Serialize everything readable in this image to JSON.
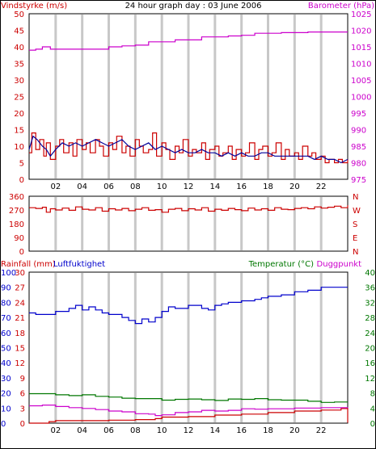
{
  "title": "24 hour graph day : 03 June 2006",
  "colors": {
    "wind": "#cc0000",
    "wind_avg": "#000099",
    "baro": "#cc00cc",
    "dir": "#cc0000",
    "rain": "#cc0000",
    "hum": "#0000cc",
    "temp": "#007700",
    "dew": "#cc00cc",
    "grid": "#c8c8c8",
    "frame": "#000000"
  },
  "x_ticks": [
    "02",
    "04",
    "06",
    "08",
    "10",
    "12",
    "14",
    "16",
    "18",
    "20",
    "22"
  ],
  "chart_data": [
    {
      "type": "line",
      "name": "wind-barometer",
      "left_label": "Vindstyrke (m/s)",
      "right_label": "Barometer (hPa)",
      "left_ticks": [
        0,
        5,
        10,
        15,
        20,
        25,
        30,
        35,
        40,
        45,
        50
      ],
      "left_range": [
        0,
        50
      ],
      "right_ticks": [
        975,
        980,
        985,
        990,
        995,
        1000,
        1005,
        1010,
        1015,
        1020,
        1025
      ],
      "right_range": [
        975,
        1025
      ],
      "x_range": [
        0,
        24
      ],
      "series": [
        {
          "axis": "left",
          "kind": "step",
          "color_key": "wind",
          "x": [
            0,
            0.2,
            0.5,
            0.8,
            1.1,
            1.3,
            1.6,
            2,
            2.3,
            2.6,
            3,
            3.3,
            3.6,
            4,
            4.3,
            4.6,
            5,
            5.3,
            5.6,
            6,
            6.3,
            6.6,
            7,
            7.3,
            7.6,
            8,
            8.3,
            8.6,
            9,
            9.3,
            9.6,
            10,
            10.3,
            10.6,
            11,
            11.3,
            11.6,
            12,
            12.3,
            12.6,
            13,
            13.3,
            13.6,
            14,
            14.3,
            14.6,
            15,
            15.3,
            15.6,
            16,
            16.3,
            16.6,
            17,
            17.3,
            17.6,
            18,
            18.3,
            18.6,
            19,
            19.3,
            19.6,
            20,
            20.3,
            20.6,
            21,
            21.3,
            21.6,
            22,
            22.3,
            22.6,
            23,
            23.3,
            23.6,
            24
          ],
          "values": [
            8,
            14,
            9,
            12,
            7,
            11,
            6,
            10,
            12,
            8,
            11,
            7,
            12,
            9,
            11,
            8,
            12,
            10,
            7,
            11,
            9,
            13,
            8,
            10,
            7,
            12,
            10,
            8,
            9,
            14,
            7,
            11,
            9,
            6,
            10,
            8,
            12,
            7,
            9,
            8,
            11,
            6,
            9,
            10,
            7,
            8,
            10,
            6,
            9,
            7,
            8,
            11,
            6,
            9,
            10,
            7,
            8,
            11,
            6,
            9,
            7,
            8,
            6,
            10,
            7,
            8,
            6,
            7,
            5,
            6,
            5,
            6,
            5,
            6
          ]
        },
        {
          "axis": "left",
          "kind": "line",
          "color_key": "wind_avg",
          "x": [
            0,
            0.3,
            0.6,
            1,
            1.3,
            1.6,
            2,
            2.5,
            3,
            3.5,
            4,
            4.5,
            5,
            5.5,
            6,
            6.5,
            7,
            7.5,
            8,
            8.5,
            9,
            9.5,
            10,
            10.5,
            11,
            11.5,
            12,
            12.5,
            13,
            13.5,
            14,
            14.5,
            15,
            15.5,
            16,
            16.5,
            17,
            17.5,
            18,
            18.5,
            19,
            19.5,
            20,
            20.5,
            21,
            21.5,
            22,
            22.5,
            23,
            23.5,
            24
          ],
          "values": [
            9,
            13,
            12,
            10,
            9,
            7,
            9,
            11,
            10,
            11,
            10,
            11,
            12,
            11,
            10,
            11,
            12,
            10,
            9,
            10,
            11,
            9,
            10,
            9,
            8,
            9,
            8,
            8,
            9,
            8,
            8,
            7,
            8,
            7,
            8,
            7,
            7,
            8,
            8,
            7,
            7,
            7,
            7,
            7,
            7,
            6,
            7,
            6,
            6,
            5,
            6
          ]
        },
        {
          "axis": "right",
          "kind": "step",
          "color_key": "baro",
          "x": [
            0,
            0.5,
            1,
            1.6,
            4,
            6,
            7,
            8,
            9,
            11,
            13,
            15,
            16,
            17,
            19,
            21,
            24
          ],
          "values": [
            1014,
            1014.3,
            1015,
            1014.3,
            1014.3,
            1015,
            1015.3,
            1015.5,
            1016.5,
            1017.1,
            1018,
            1018.3,
            1018.5,
            1019.1,
            1019.3,
            1019.5,
            1019.5
          ]
        }
      ]
    },
    {
      "type": "line",
      "name": "wind-direction",
      "left_ticks": [
        0,
        90,
        180,
        270,
        360
      ],
      "left_range": [
        0,
        360
      ],
      "right_labels": [
        "N",
        "W",
        "S",
        "E",
        "N"
      ],
      "x_range": [
        0,
        24
      ],
      "series": [
        {
          "axis": "left",
          "kind": "step",
          "color_key": "dir",
          "x": [
            0,
            0.5,
            1,
            1.3,
            1.6,
            2,
            2.5,
            3,
            3.5,
            4,
            4.5,
            5,
            5.5,
            6,
            6.5,
            7,
            7.5,
            8,
            8.5,
            9,
            9.5,
            10,
            10.5,
            11,
            11.5,
            12,
            12.5,
            13,
            13.5,
            14,
            14.5,
            15,
            15.5,
            16,
            16.5,
            17,
            17.5,
            18,
            18.5,
            19,
            19.5,
            20,
            20.5,
            21,
            21.5,
            22,
            22.5,
            23,
            23.5,
            24
          ],
          "values": [
            285,
            280,
            288,
            255,
            278,
            270,
            282,
            268,
            290,
            275,
            270,
            285,
            262,
            278,
            270,
            280,
            265,
            275,
            285,
            268,
            272,
            255,
            275,
            280,
            265,
            278,
            270,
            285,
            262,
            275,
            268,
            280,
            272,
            265,
            282,
            270,
            278,
            268,
            285,
            275,
            272,
            280,
            285,
            278,
            290,
            282,
            288,
            295,
            285,
            300
          ]
        }
      ]
    },
    {
      "type": "line",
      "name": "rain-humidity-temperature",
      "left_label_rain": "Rainfall (mm)",
      "left_label_hum": "Luftfuktighet",
      "right_label_temp": "Temperatur (°C)",
      "right_label_dew": "Duggpunkt",
      "rain_ticks": [
        0,
        3,
        6,
        9,
        12,
        15,
        18,
        21,
        24,
        27,
        30
      ],
      "hum_ticks": [
        0,
        10,
        20,
        30,
        40,
        50,
        60,
        70,
        80,
        90,
        100
      ],
      "temp_ticks": [
        0,
        4,
        8,
        12,
        16,
        20,
        24,
        28,
        32,
        36,
        40
      ],
      "x_range": [
        0,
        24
      ],
      "series": [
        {
          "axis": "rain",
          "kind": "step",
          "color_key": "rain",
          "x": [
            0,
            1.5,
            2,
            4,
            6,
            8,
            9.5,
            10,
            12,
            14,
            16,
            18,
            20,
            22,
            23.5,
            24
          ],
          "values": [
            0,
            0.3,
            0.5,
            0.5,
            0.6,
            0.7,
            0.9,
            1.2,
            1.3,
            1.6,
            1.8,
            2.1,
            2.4,
            2.6,
            2.9,
            0.1
          ]
        },
        {
          "axis": "hum",
          "kind": "step",
          "color_key": "hum",
          "x": [
            0,
            0.5,
            1,
            2,
            3,
            3.5,
            4,
            4.5,
            5,
            5.5,
            6,
            7,
            7.5,
            8,
            8.5,
            9,
            9.5,
            10,
            10.5,
            11,
            12,
            13,
            13.5,
            14,
            14.5,
            15,
            16,
            17,
            17.5,
            18,
            18.5,
            19,
            20,
            21,
            22,
            23,
            24
          ],
          "values": [
            73,
            72,
            72,
            74,
            76,
            78,
            75,
            77,
            75,
            73,
            72,
            70,
            68,
            66,
            69,
            67,
            70,
            74,
            77,
            76,
            78,
            76,
            75,
            78,
            79,
            80,
            81,
            82,
            83,
            84,
            84,
            85,
            87,
            88,
            90,
            90,
            90
          ]
        },
        {
          "axis": "temp",
          "kind": "step",
          "color_key": "temp",
          "x": [
            0,
            1,
            2,
            3,
            4,
            5,
            6,
            7,
            8,
            9,
            10,
            11,
            12,
            13,
            14,
            15,
            16,
            17,
            18,
            19,
            20,
            21,
            22,
            23,
            24
          ],
          "values": [
            7.8,
            7.8,
            7.5,
            7.3,
            7.5,
            7.1,
            6.9,
            6.6,
            6.5,
            6.5,
            6.1,
            6.3,
            6.4,
            6.2,
            6,
            6.4,
            6.3,
            6.5,
            6.2,
            6.1,
            6.1,
            5.8,
            5.5,
            5.6,
            5.6
          ]
        },
        {
          "axis": "temp",
          "kind": "step",
          "color_key": "dew",
          "x": [
            0,
            1,
            2,
            3,
            4,
            5,
            6,
            7,
            8,
            9,
            9.5,
            10,
            11,
            12,
            13,
            14,
            15,
            16,
            17,
            18,
            19,
            20,
            21,
            22,
            23,
            24
          ],
          "values": [
            4.6,
            4.8,
            4.4,
            4.1,
            3.9,
            3.6,
            3.2,
            3,
            2.5,
            2.4,
            2,
            2.2,
            2.8,
            3,
            3.4,
            3.2,
            3.4,
            3.8,
            3.7,
            3.8,
            3.8,
            4,
            4,
            4.1,
            4.1,
            4
          ]
        }
      ]
    }
  ]
}
